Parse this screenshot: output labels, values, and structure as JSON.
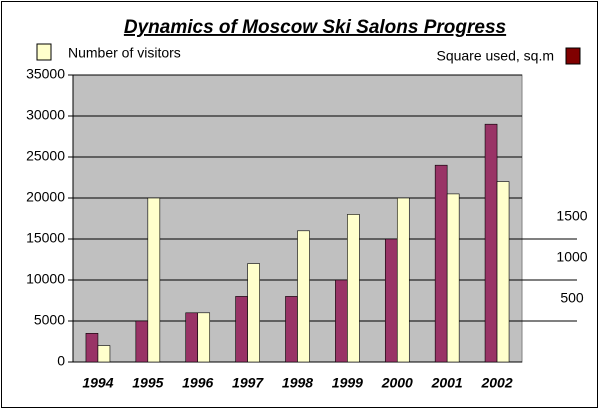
{
  "chart_data": {
    "type": "bar",
    "title": "Dynamics of Moscow Ski Salons Progress",
    "categories": [
      "1994",
      "1995",
      "1996",
      "1997",
      "1998",
      "1999",
      "2000",
      "2001",
      "2002"
    ],
    "series": [
      {
        "name": "Square used, sq.m",
        "color": "#993366",
        "axis": "y2",
        "values": [
          350,
          500,
          600,
          800,
          800,
          1000,
          1500,
          2400,
          2900
        ]
      },
      {
        "name": "Number of visitors",
        "color": "#ffffcc",
        "values": [
          2000,
          20000,
          6000,
          12000,
          16000,
          18000,
          20000,
          20500,
          22000
        ]
      }
    ],
    "ylim": [
      0,
      35000
    ],
    "yticks": [
      0,
      5000,
      10000,
      15000,
      20000,
      25000,
      30000,
      35000
    ],
    "y2lim": [
      0,
      3500
    ],
    "y2ticks": [
      500,
      1000,
      1500
    ],
    "grid": true
  }
}
